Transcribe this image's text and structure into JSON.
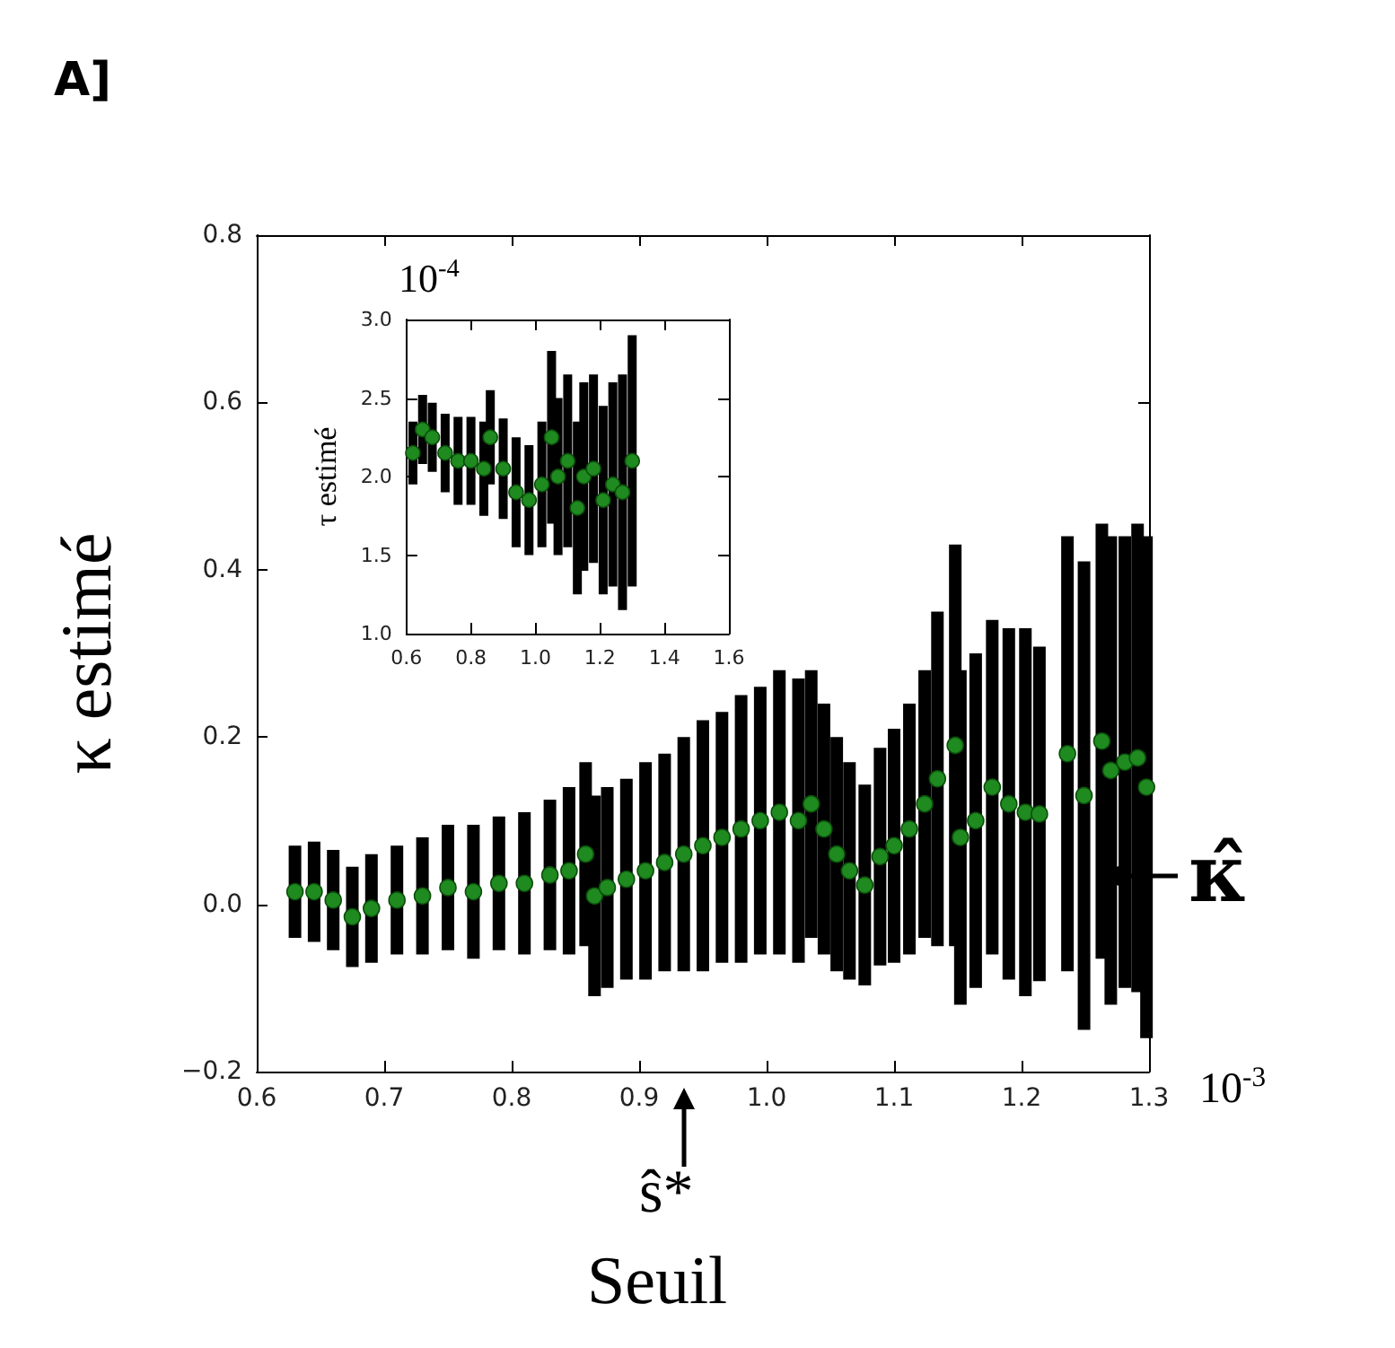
{
  "chart_data": [
    {
      "type": "scatter",
      "ylabel": "κ estimé",
      "annotations": [
        "A]",
        "κ̂",
        "ŝ*",
        "Seuil",
        "10$^{-3}$"
      ],
      "xlim": [
        0.6,
        1.3
      ],
      "xticks": [
        0.6,
        0.7,
        0.8,
        0.9,
        {
          "value": 1,
          "label": "1.0"
        },
        1.1,
        1.2,
        1.3
      ],
      "ylim": [
        -0.2,
        0.8
      ],
      "yticks": [
        {
          "value": -0.2,
          "label": "−0.2"
        },
        {
          "value": 0,
          "label": "0.0"
        },
        0.2,
        0.4,
        0.6,
        0.8
      ],
      "grid": false,
      "marker": "circle",
      "series": [
        {
          "color": "#1f8a1f",
          "x": [
            0.63,
            0.645,
            0.66,
            0.675,
            0.69,
            0.71,
            0.73,
            0.75,
            0.77,
            0.79,
            0.81,
            0.83,
            0.845,
            0.858,
            0.865,
            0.875,
            0.89,
            0.905,
            0.92,
            0.935,
            0.95,
            0.965,
            0.98,
            0.995,
            1.01,
            1.025,
            1.035,
            1.045,
            1.055,
            1.065,
            1.077,
            1.089,
            1.1,
            1.112,
            1.124,
            1.134,
            1.148,
            1.152,
            1.164,
            1.177,
            1.19,
            1.203,
            1.214,
            1.236,
            1.249,
            1.263,
            1.27,
            1.281,
            1.291,
            1.298
          ],
          "values": [
            0.015,
            0.015,
            0.005,
            -0.015,
            -0.005,
            0.005,
            0.01,
            0.02,
            0.015,
            0.025,
            0.025,
            0.035,
            0.04,
            0.06,
            0.01,
            0.02,
            0.03,
            0.04,
            0.05,
            0.06,
            0.07,
            0.08,
            0.09,
            0.1,
            0.11,
            0.1,
            0.12,
            0.09,
            0.06,
            0.04,
            0.023,
            0.057,
            0.07,
            0.09,
            0.12,
            0.15,
            0.19,
            0.08,
            0.1,
            0.14,
            0.12,
            0.11,
            0.108,
            0.18,
            0.13,
            0.195,
            0.16,
            0.17,
            0.175,
            0.14
          ],
          "errors": [
            0.055,
            0.06,
            0.06,
            0.06,
            0.065,
            0.065,
            0.07,
            0.075,
            0.08,
            0.08,
            0.085,
            0.09,
            0.1,
            0.11,
            0.12,
            0.12,
            0.12,
            0.13,
            0.13,
            0.14,
            0.15,
            0.15,
            0.16,
            0.16,
            0.17,
            0.17,
            0.16,
            0.15,
            0.14,
            0.13,
            0.12,
            0.13,
            0.14,
            0.15,
            0.16,
            0.2,
            0.24,
            0.2,
            0.2,
            0.2,
            0.21,
            0.22,
            0.2,
            0.26,
            0.28,
            0.26,
            0.28,
            0.27,
            0.28,
            0.3
          ]
        }
      ]
    },
    {
      "type": "scatter",
      "ylabel": "τ estimé",
      "annotations": [
        "10$^{-4}$"
      ],
      "xlim": [
        0.6,
        1.6
      ],
      "xticks": [
        0.6,
        0.8,
        {
          "value": 1,
          "label": "1.0"
        },
        1.2,
        1.4,
        1.6
      ],
      "ylim": [
        1,
        3
      ],
      "yticks": [
        {
          "value": 1,
          "label": "1.0"
        },
        1.5,
        {
          "value": 2,
          "label": "2.0"
        },
        2.5,
        {
          "value": 3,
          "label": "3.0"
        }
      ],
      "grid": false,
      "marker": "circle",
      "series": [
        {
          "color": "#1f8a1f",
          "x": [
            0.62,
            0.65,
            0.68,
            0.72,
            0.76,
            0.8,
            0.84,
            0.86,
            0.9,
            0.94,
            0.98,
            1.02,
            1.05,
            1.07,
            1.1,
            1.13,
            1.15,
            1.18,
            1.21,
            1.24,
            1.27,
            1.3
          ],
          "values": [
            2.15,
            2.3,
            2.25,
            2.15,
            2.1,
            2.1,
            2.05,
            2.25,
            2.05,
            1.9,
            1.85,
            1.95,
            2.25,
            2.0,
            2.1,
            1.8,
            2.0,
            2.05,
            1.85,
            1.95,
            1.9,
            2.1
          ],
          "errors": [
            0.2,
            0.22,
            0.22,
            0.25,
            0.28,
            0.28,
            0.3,
            0.3,
            0.32,
            0.35,
            0.35,
            0.4,
            0.55,
            0.5,
            0.55,
            0.55,
            0.6,
            0.6,
            0.6,
            0.65,
            0.75,
            0.8
          ]
        }
      ]
    }
  ]
}
